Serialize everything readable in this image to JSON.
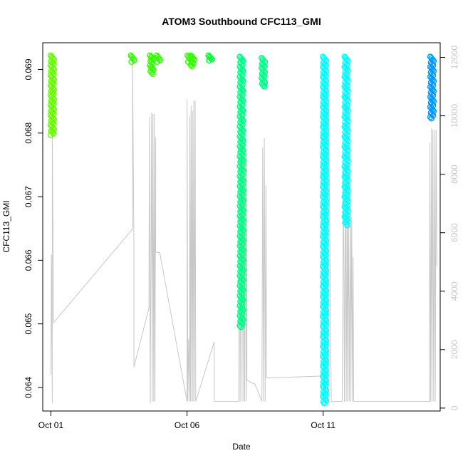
{
  "chart_data": {
    "type": "scatter",
    "title": "ATOM3 Southbound CFC113_GMI",
    "xlabel": "Date",
    "ylabel": "CFC113_GMI",
    "x_ticks": [
      "Oct 01",
      "Oct 06",
      "Oct 11"
    ],
    "y_ticks": [
      "0.064",
      "0.065",
      "0.066",
      "0.067",
      "0.068",
      "0.069"
    ],
    "y_right_ticks": [
      "0",
      "2000",
      "4000",
      "6000",
      "8000",
      "10000",
      "12000"
    ],
    "xlim": [
      -0.3,
      14.3
    ],
    "ylim": [
      0.06363,
      0.06942
    ],
    "y_right_lim": [
      -100,
      12500
    ],
    "grid": false,
    "line_color": "#c8c8c8",
    "point_clusters": [
      {
        "day": 0.05,
        "y_top": 0.06922,
        "y_bottom": 0.06797,
        "color": "#66ff00"
      },
      {
        "day": 3.0,
        "y_top": 0.06922,
        "y_bottom": 0.06912,
        "color": "#33ff00"
      },
      {
        "day": 3.7,
        "y_top": 0.06922,
        "y_bottom": 0.06893,
        "color": "#33ff00"
      },
      {
        "day": 3.95,
        "y_top": 0.06922,
        "y_bottom": 0.06912,
        "color": "#33ff00"
      },
      {
        "day": 5.08,
        "y_top": 0.06922,
        "y_bottom": 0.06912,
        "color": "#33ff00"
      },
      {
        "day": 5.2,
        "y_top": 0.06922,
        "y_bottom": 0.06905,
        "color": "#33ff00"
      },
      {
        "day": 5.85,
        "y_top": 0.06922,
        "y_bottom": 0.06914,
        "color": "#00ff33"
      },
      {
        "day": 7.0,
        "y_top": 0.0692,
        "y_bottom": 0.06495,
        "color": "#00ff88"
      },
      {
        "day": 7.8,
        "y_top": 0.06918,
        "y_bottom": 0.06873,
        "color": "#00ff88"
      },
      {
        "day": 10.05,
        "y_top": 0.0692,
        "y_bottom": 0.06375,
        "color": "#00ffff"
      },
      {
        "day": 10.85,
        "y_top": 0.0692,
        "y_bottom": 0.06655,
        "color": "#00ffff"
      },
      {
        "day": 14.0,
        "y_top": 0.0692,
        "y_bottom": 0.06823,
        "color": "#0099ff"
      }
    ],
    "secondary_line": [
      [
        0.0,
        0.0642
      ],
      [
        0.02,
        0.06609
      ],
      [
        0.05,
        0.06375
      ],
      [
        0.05,
        0.06797
      ],
      [
        0.1,
        0.06502
      ],
      [
        3.0,
        0.06649
      ],
      [
        3.0,
        0.06922
      ],
      [
        3.05,
        0.06626
      ],
      [
        3.05,
        0.06432
      ],
      [
        3.6,
        0.06525
      ],
      [
        3.62,
        0.06826
      ],
      [
        3.65,
        0.06375
      ],
      [
        3.7,
        0.06832
      ],
      [
        3.72,
        0.06378
      ],
      [
        3.75,
        0.0683
      ],
      [
        3.78,
        0.06378
      ],
      [
        3.8,
        0.0683
      ],
      [
        3.82,
        0.06378
      ],
      [
        3.85,
        0.06794
      ],
      [
        3.85,
        0.06613
      ],
      [
        4.0,
        0.06612
      ],
      [
        5.0,
        0.06378
      ],
      [
        5.0,
        0.06853
      ],
      [
        5.03,
        0.06378
      ],
      [
        5.06,
        0.06476
      ],
      [
        5.09,
        0.06378
      ],
      [
        5.1,
        0.06827
      ],
      [
        5.13,
        0.06378
      ],
      [
        5.15,
        0.06843
      ],
      [
        5.18,
        0.06378
      ],
      [
        5.2,
        0.06835
      ],
      [
        5.22,
        0.06378
      ],
      [
        5.25,
        0.06851
      ],
      [
        5.27,
        0.06378
      ],
      [
        5.3,
        0.06851
      ],
      [
        5.32,
        0.06378
      ],
      [
        6.0,
        0.06472
      ],
      [
        6.0,
        0.06378
      ],
      [
        6.9,
        0.06378
      ],
      [
        6.92,
        0.06809
      ],
      [
        6.95,
        0.06378
      ],
      [
        7.0,
        0.06845
      ],
      [
        7.02,
        0.06378
      ],
      [
        7.05,
        0.06815
      ],
      [
        7.08,
        0.06378
      ],
      [
        7.1,
        0.06835
      ],
      [
        7.12,
        0.06378
      ],
      [
        7.15,
        0.06795
      ],
      [
        7.18,
        0.06378
      ],
      [
        7.2,
        0.06769
      ],
      [
        7.2,
        0.06411
      ],
      [
        7.5,
        0.06405
      ],
      [
        7.75,
        0.06378
      ],
      [
        7.78,
        0.06777
      ],
      [
        7.81,
        0.06378
      ],
      [
        7.84,
        0.06792
      ],
      [
        7.87,
        0.06378
      ],
      [
        7.9,
        0.06717
      ],
      [
        7.92,
        0.06415
      ],
      [
        10.0,
        0.06418
      ],
      [
        10.03,
        0.06378
      ],
      [
        10.06,
        0.06861
      ],
      [
        10.1,
        0.06378
      ],
      [
        10.13,
        0.06861
      ],
      [
        10.16,
        0.06378
      ],
      [
        10.2,
        0.06853
      ],
      [
        10.3,
        0.06378
      ],
      [
        10.7,
        0.06378
      ],
      [
        10.75,
        0.06745
      ],
      [
        10.78,
        0.06378
      ],
      [
        10.82,
        0.06755
      ],
      [
        10.85,
        0.06378
      ],
      [
        10.88,
        0.06725
      ],
      [
        10.9,
        0.06378
      ],
      [
        10.93,
        0.06718
      ],
      [
        10.96,
        0.06378
      ],
      [
        11.0,
        0.06715
      ],
      [
        11.02,
        0.06378
      ],
      [
        11.05,
        0.06668
      ],
      [
        11.08,
        0.06378
      ],
      [
        11.1,
        0.06605
      ],
      [
        11.12,
        0.06378
      ],
      [
        13.9,
        0.06378
      ],
      [
        13.92,
        0.06785
      ],
      [
        13.95,
        0.06378
      ],
      [
        13.98,
        0.06807
      ],
      [
        14.0,
        0.06378
      ],
      [
        14.03,
        0.06805
      ],
      [
        14.06,
        0.06378
      ],
      [
        14.1,
        0.06805
      ],
      [
        14.12,
        0.06378
      ],
      [
        14.15,
        0.06805
      ],
      [
        14.18,
        0.06591
      ]
    ]
  }
}
